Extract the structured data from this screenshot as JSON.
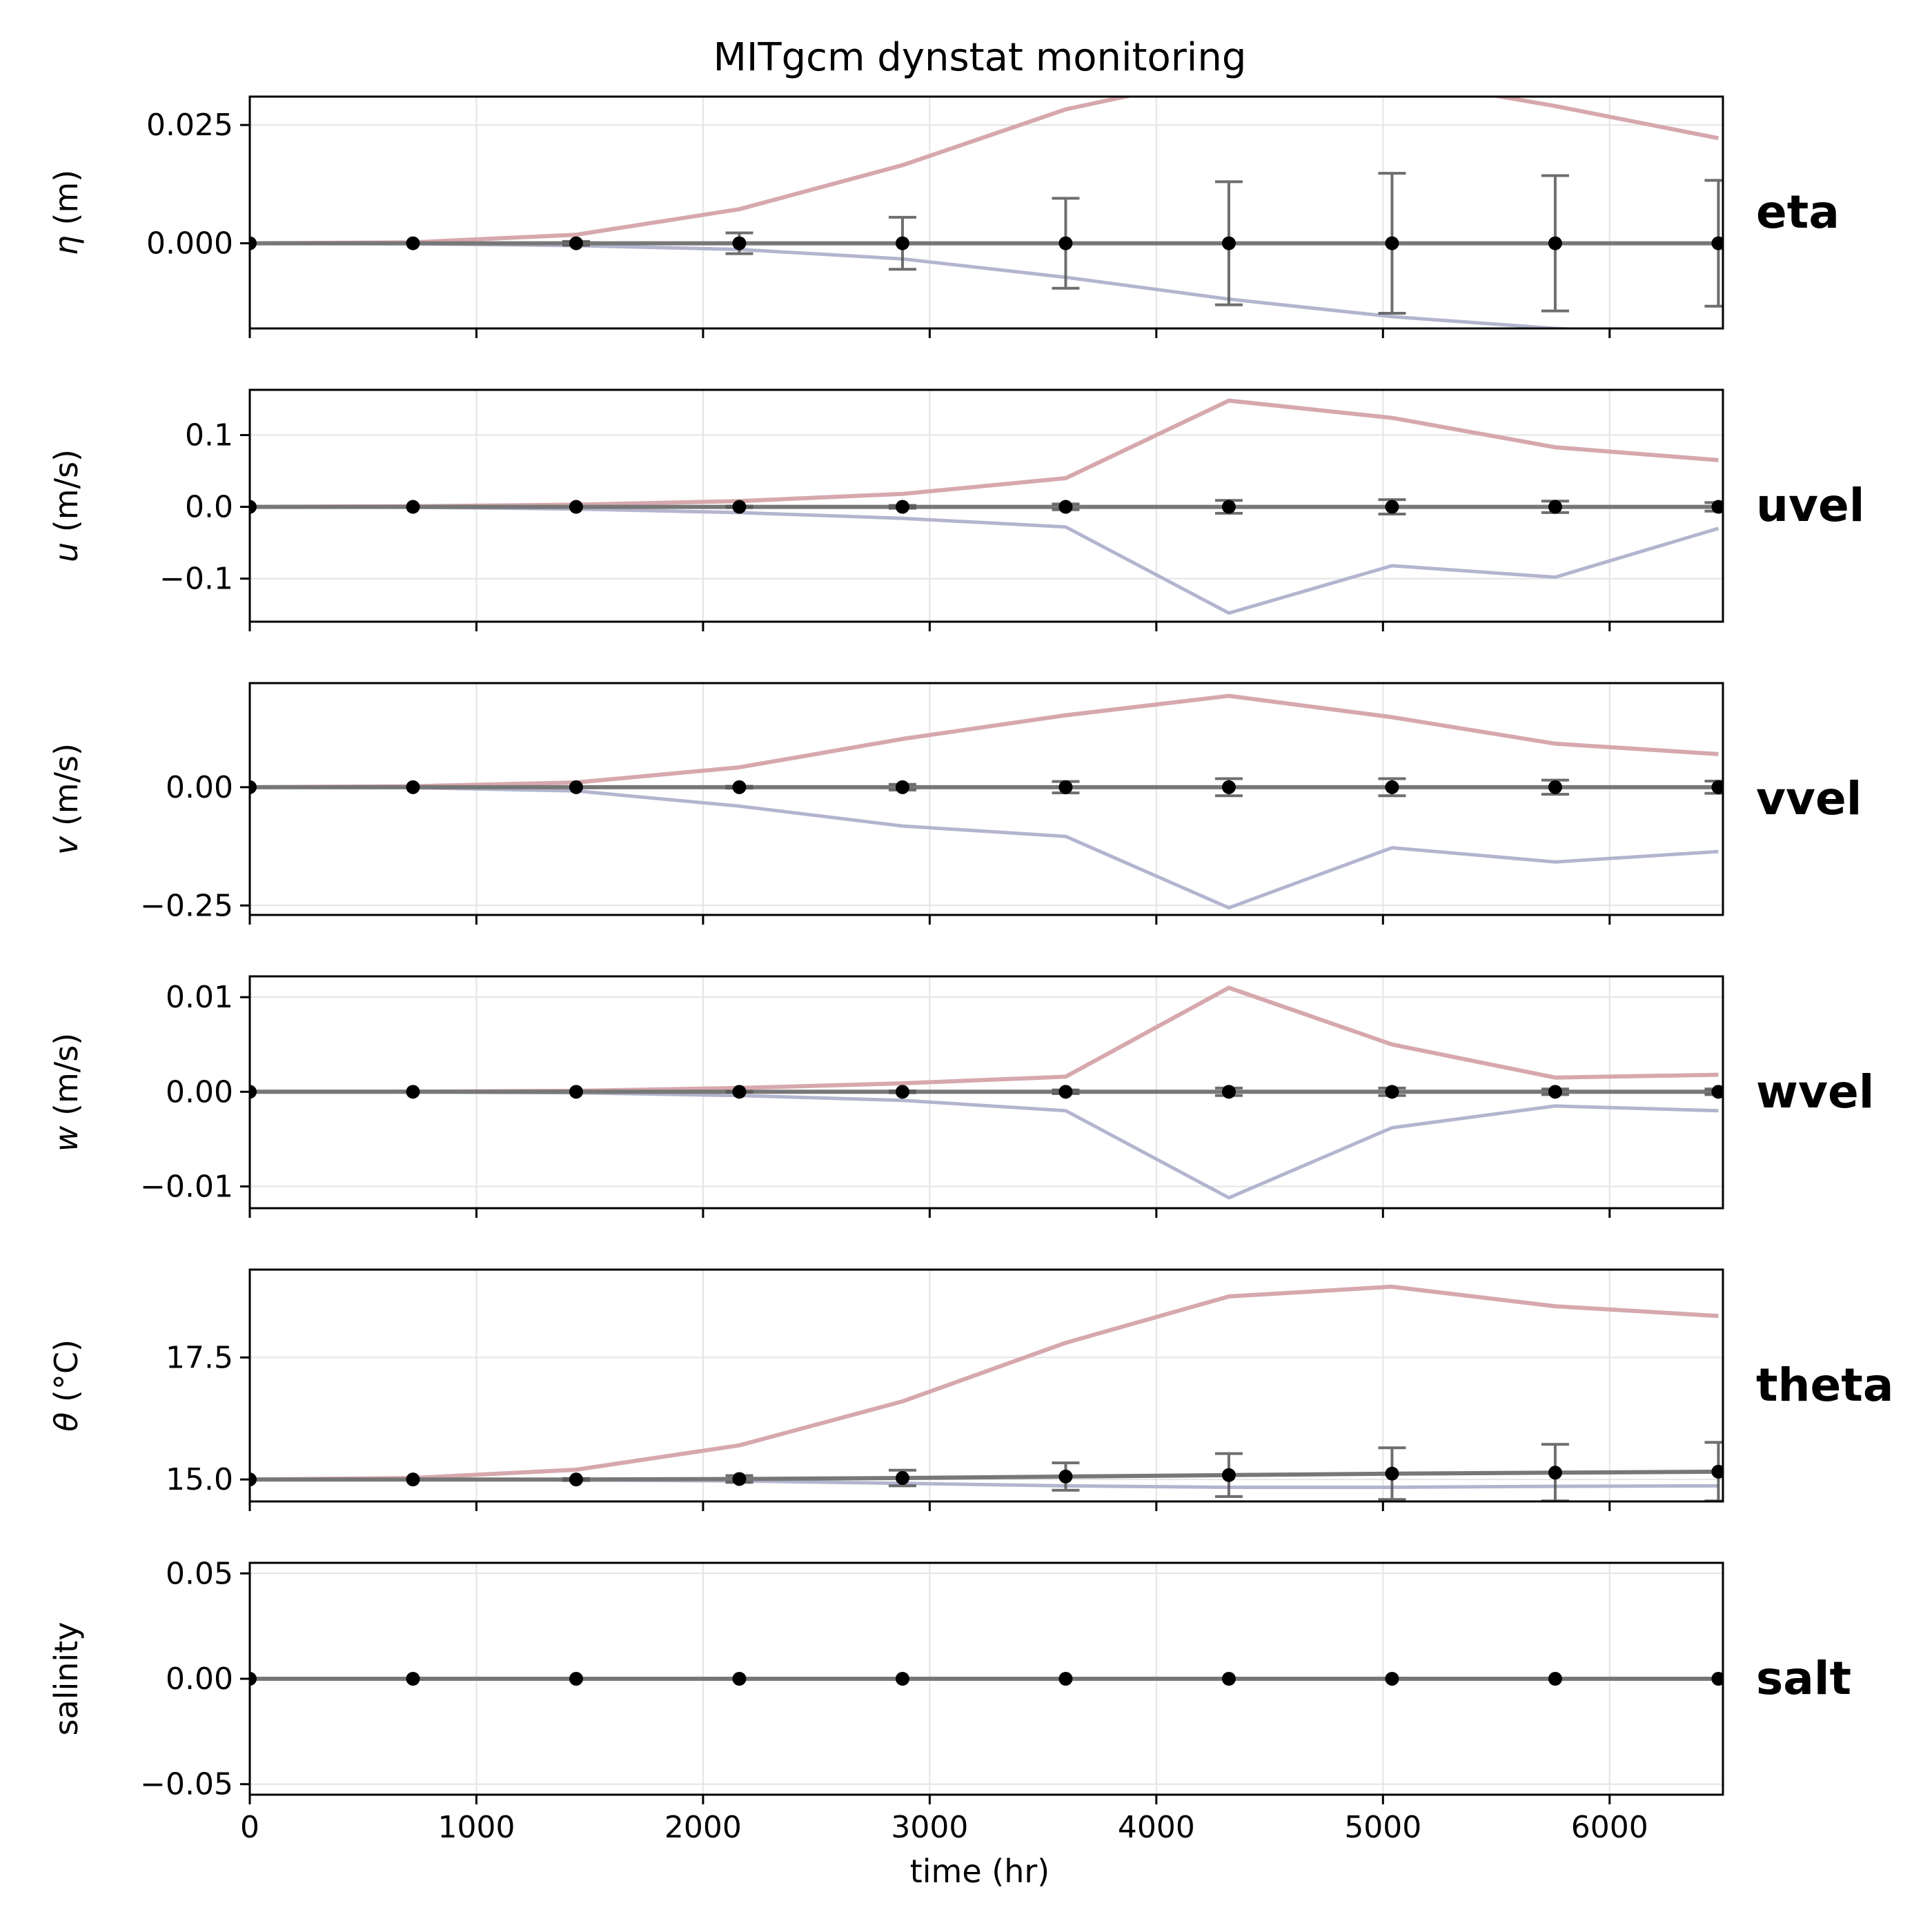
{
  "chart_data": {
    "type": "line",
    "title": "MITgcm dynstat monitoring",
    "xlabel": "time (hr)",
    "xlim": [
      0,
      6500
    ],
    "x_ticks": [
      0,
      1000,
      2000,
      3000,
      4000,
      5000,
      6000
    ],
    "x_tick_labels": [
      "0",
      "1000",
      "2000",
      "3000",
      "4000",
      "5000",
      "6000"
    ],
    "x": [
      0,
      720,
      1440,
      2160,
      2880,
      3600,
      4320,
      5040,
      5760,
      6480
    ],
    "grid": true,
    "colors": {
      "max": "#d6a8ac",
      "min": "#b3b5cf",
      "mean": "#777777",
      "marker": "#000000",
      "grid": "#e4e4e4"
    },
    "panels": [
      {
        "name": "eta",
        "ylabel_symbol": "η",
        "ylabel_unit": " (m)",
        "ylim": [
          -0.018,
          0.031
        ],
        "y_ticks": [
          0.0,
          0.025
        ],
        "y_tick_labels": [
          "0.000",
          "0.025"
        ],
        "series": [
          {
            "role": "max",
            "values": [
              0,
              0.0002,
              0.0018,
              0.0072,
              0.0165,
              0.0283,
              0.0357,
              0.035,
              0.029,
              0.0222
            ]
          },
          {
            "role": "min",
            "values": [
              0,
              -0.0001,
              -0.0005,
              -0.0013,
              -0.0033,
              -0.0072,
              -0.0118,
              -0.0155,
              -0.018,
              -0.0195
            ]
          },
          {
            "role": "mean",
            "values": [
              0,
              0,
              0,
              0,
              0,
              0,
              0,
              0,
              0,
              0
            ]
          }
        ],
        "errors": [
          0,
          0,
          0.0004,
          0.0022,
          0.0055,
          0.0095,
          0.013,
          0.0148,
          0.0143,
          0.0133
        ]
      },
      {
        "name": "uvel",
        "ylabel_symbol": "u",
        "ylabel_unit": " (m/s)",
        "ylim": [
          -0.16,
          0.163
        ],
        "y_ticks": [
          -0.1,
          0.0,
          0.1
        ],
        "y_tick_labels": [
          "−0.1",
          "0.0",
          "0.1"
        ],
        "series": [
          {
            "role": "max",
            "values": [
              0,
              0.0008,
              0.003,
              0.008,
              0.018,
              0.04,
              0.148,
              0.124,
              0.083,
              0.065
            ]
          },
          {
            "role": "min",
            "values": [
              0,
              -0.0005,
              -0.003,
              -0.008,
              -0.016,
              -0.028,
              -0.148,
              -0.082,
              -0.098,
              -0.03
            ]
          },
          {
            "role": "mean",
            "values": [
              0,
              0,
              0,
              0,
              0,
              0,
              0,
              0,
              0,
              0
            ]
          }
        ],
        "errors": [
          0,
          0,
          0,
          0.001,
          0.002,
          0.004,
          0.009,
          0.01,
          0.008,
          0.006
        ]
      },
      {
        "name": "vvel",
        "ylabel_symbol": "v",
        "ylabel_unit": " (m/s)",
        "ylim": [
          -0.27,
          0.22
        ],
        "y_ticks": [
          -0.25,
          0.0
        ],
        "y_tick_labels": [
          "−0.25",
          "0.00"
        ],
        "series": [
          {
            "role": "max",
            "values": [
              0,
              0.002,
              0.01,
              0.042,
              0.102,
              0.152,
              0.193,
              0.148,
              0.092,
              0.07
            ]
          },
          {
            "role": "min",
            "values": [
              0,
              -0.001,
              -0.008,
              -0.04,
              -0.082,
              -0.104,
              -0.255,
              -0.128,
              -0.158,
              -0.136
            ]
          },
          {
            "role": "mean",
            "values": [
              0,
              0,
              0,
              0,
              0,
              0,
              0,
              0,
              0,
              0
            ]
          }
        ],
        "errors": [
          0,
          0,
          0,
          0.002,
          0.006,
          0.012,
          0.018,
          0.018,
          0.015,
          0.013
        ]
      },
      {
        "name": "wvel",
        "ylabel_symbol": "w",
        "ylabel_unit": " (m/s)",
        "ylim": [
          -0.0123,
          0.0122
        ],
        "y_ticks": [
          -0.01,
          0.0,
          0.01
        ],
        "y_tick_labels": [
          "−0.01",
          "0.00",
          "0.01"
        ],
        "series": [
          {
            "role": "max",
            "values": [
              0,
              2e-05,
              0.0001,
              0.0004,
              0.0009,
              0.0016,
              0.011,
              0.005,
              0.0015,
              0.0018
            ]
          },
          {
            "role": "min",
            "values": [
              0,
              -2e-05,
              -0.0001,
              -0.0004,
              -0.0009,
              -0.002,
              -0.0112,
              -0.0038,
              -0.0015,
              -0.002
            ]
          },
          {
            "role": "mean",
            "values": [
              0,
              0,
              0,
              0,
              0,
              0,
              0,
              0,
              0,
              0
            ]
          }
        ],
        "errors": [
          0,
          0,
          0,
          5e-05,
          0.0001,
          0.0002,
          0.0004,
          0.0004,
          0.0003,
          0.0003
        ]
      },
      {
        "name": "theta",
        "ylabel_symbol": "θ",
        "ylabel_unit": " (°C)",
        "ylim": [
          14.55,
          19.3
        ],
        "y_ticks": [
          15.0,
          17.5
        ],
        "y_tick_labels": [
          "15.0",
          "17.5"
        ],
        "series": [
          {
            "role": "max",
            "values": [
              15.0,
              15.03,
              15.2,
              15.7,
              16.6,
              17.8,
              18.75,
              18.95,
              18.55,
              18.35
            ]
          },
          {
            "role": "min",
            "values": [
              15.0,
              15.0,
              14.99,
              14.97,
              14.92,
              14.87,
              14.84,
              14.84,
              14.86,
              14.87
            ]
          },
          {
            "role": "mean",
            "values": [
              15.0,
              15.0,
              15.0,
              15.01,
              15.03,
              15.06,
              15.09,
              15.12,
              15.14,
              15.16
            ]
          }
        ],
        "errors": [
          0,
          0,
          0.02,
          0.07,
          0.16,
          0.28,
          0.44,
          0.53,
          0.58,
          0.6
        ]
      },
      {
        "name": "salt",
        "ylabel_symbol": "",
        "ylabel_unit": "salinity",
        "ylim": [
          -0.055,
          0.055
        ],
        "y_ticks": [
          -0.05,
          0.0,
          0.05
        ],
        "y_tick_labels": [
          "−0.05",
          "0.00",
          "0.05"
        ],
        "series": [
          {
            "role": "max",
            "values": [
              0,
              0,
              0,
              0,
              0,
              0,
              0,
              0,
              0,
              0
            ]
          },
          {
            "role": "min",
            "values": [
              0,
              0,
              0,
              0,
              0,
              0,
              0,
              0,
              0,
              0
            ]
          },
          {
            "role": "mean",
            "values": [
              0,
              0,
              0,
              0,
              0,
              0,
              0,
              0,
              0,
              0
            ]
          }
        ],
        "errors": [
          0,
          0,
          0,
          0,
          0,
          0,
          0,
          0,
          0,
          0
        ]
      }
    ]
  }
}
